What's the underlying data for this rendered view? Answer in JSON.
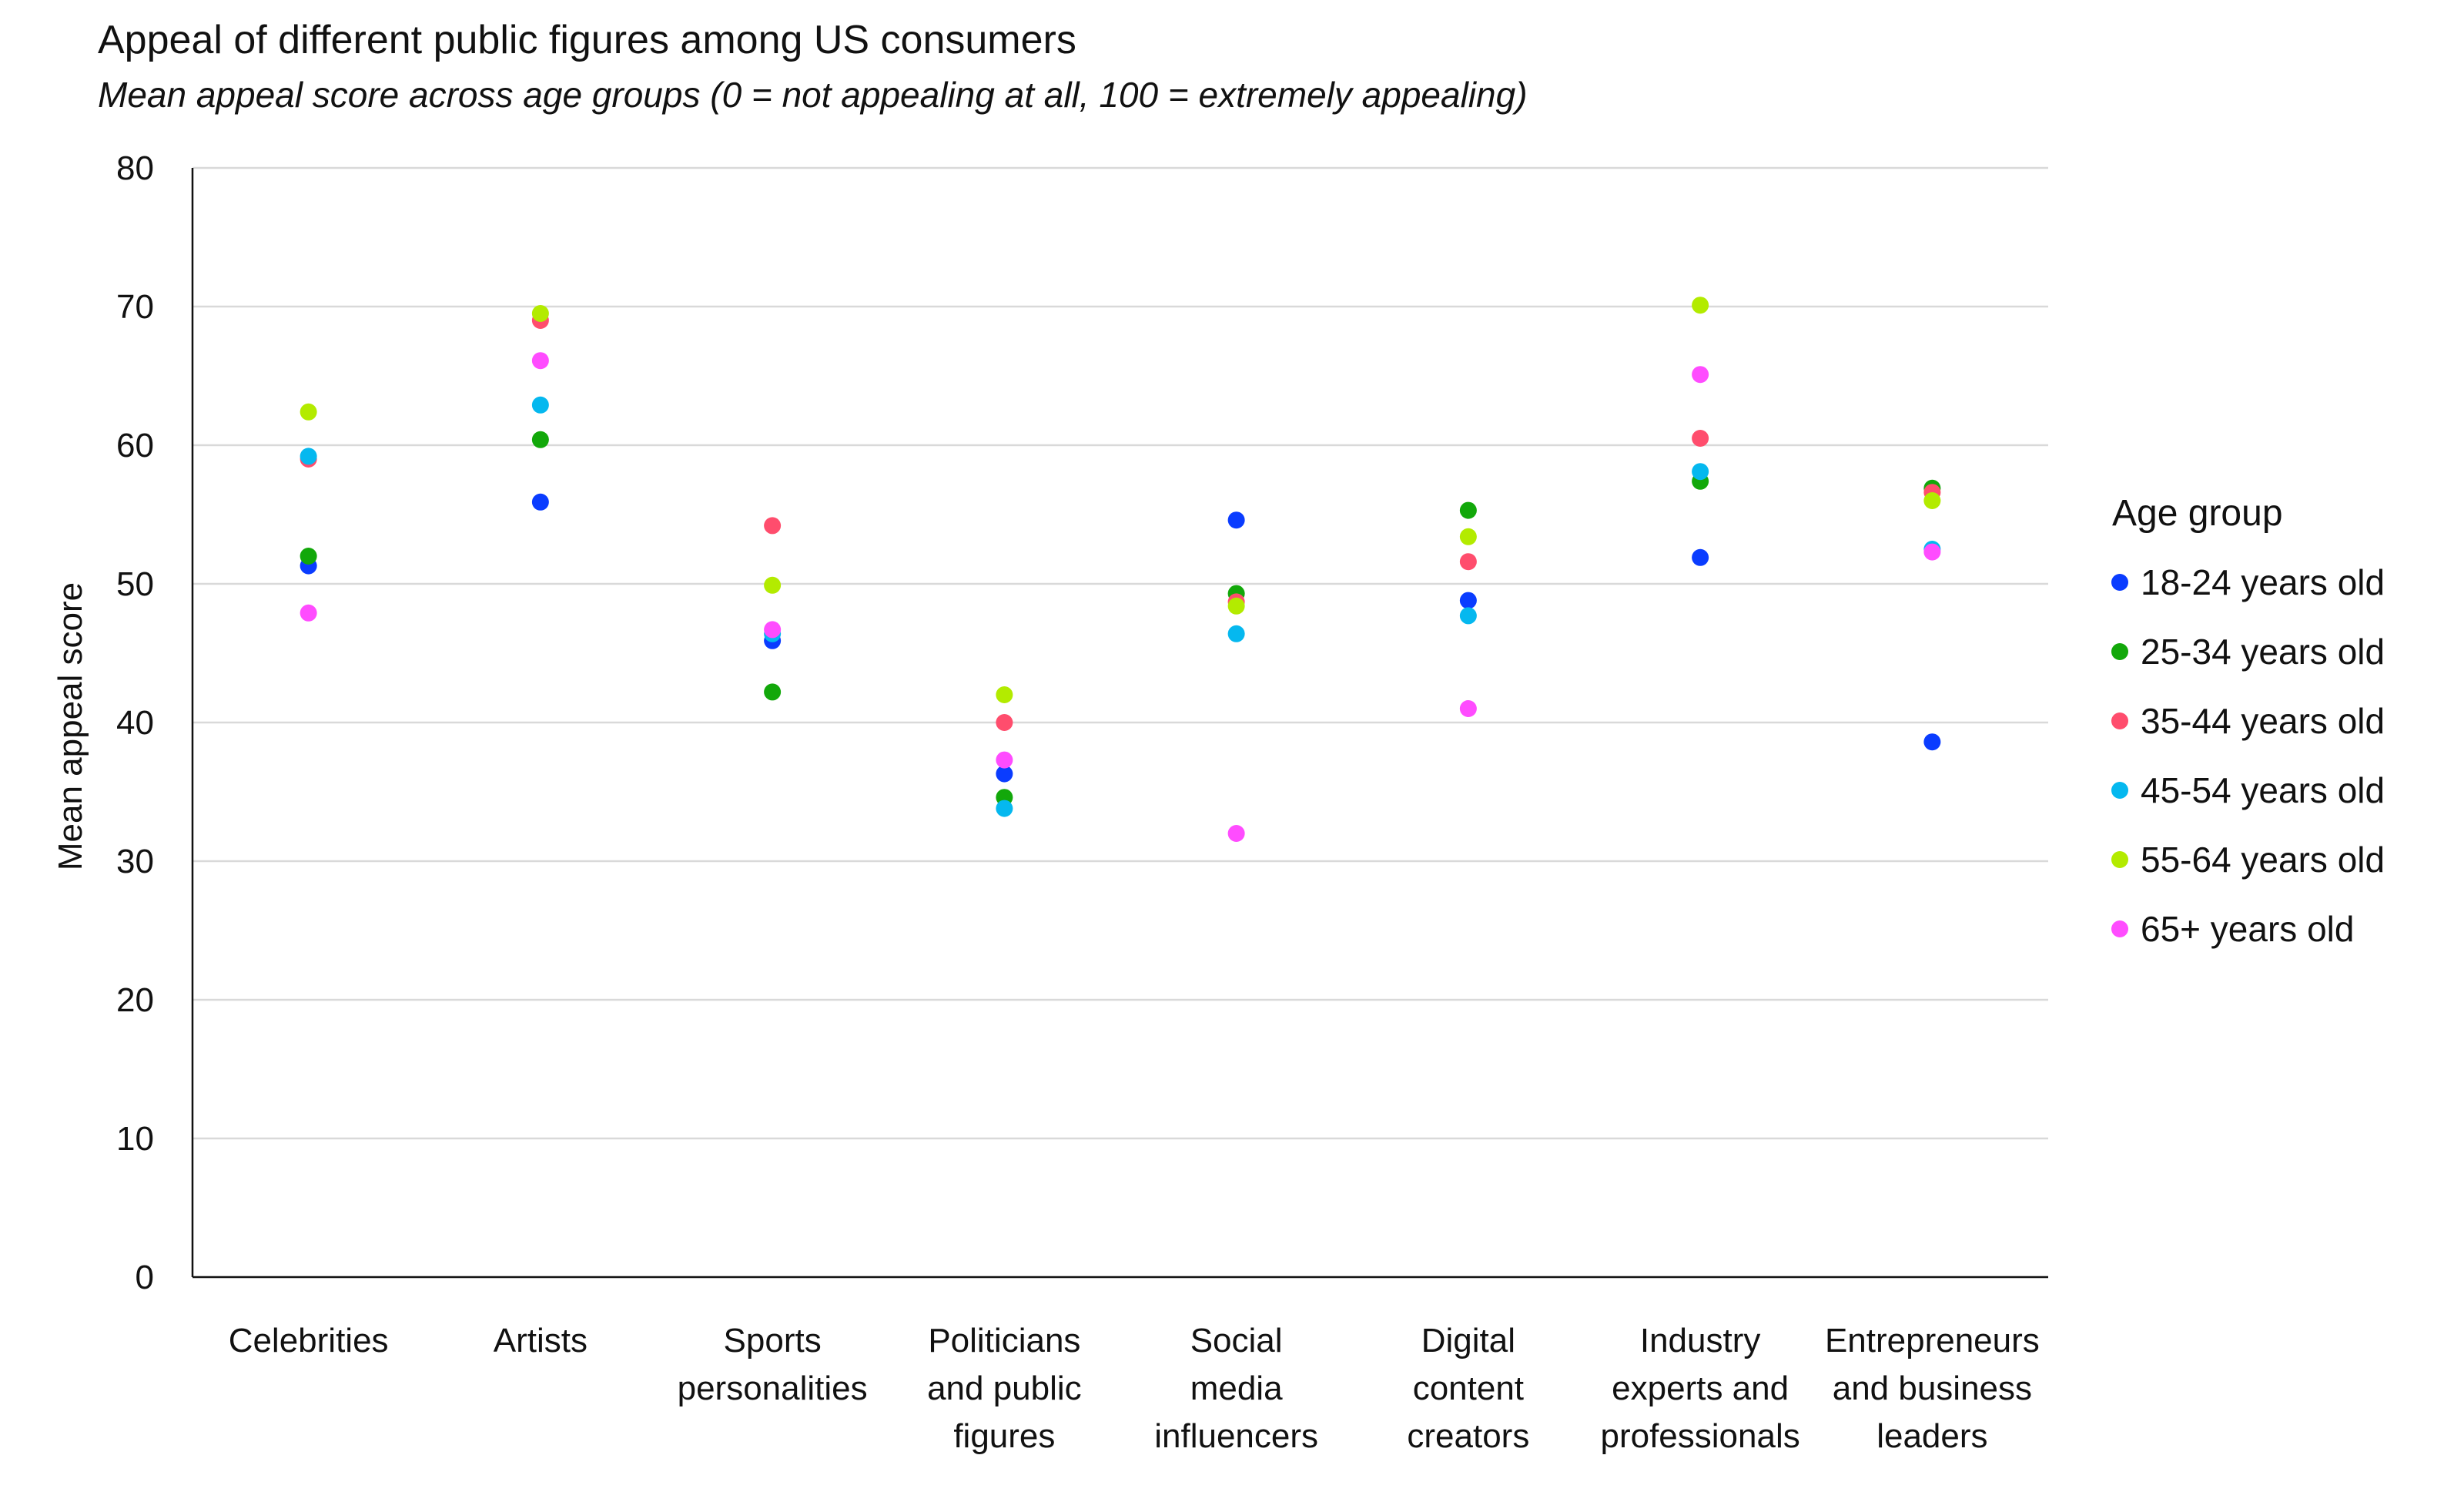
{
  "chart_data": {
    "type": "scatter",
    "title": "Appeal of different public figures among US consumers",
    "subtitle": "Mean appeal score across age groups (0 = not appealing at all, 100 = extremely appealing)",
    "xlabel": "",
    "ylabel": "Mean appeal score",
    "ylim": [
      0,
      80
    ],
    "yticks": [
      "0",
      "10",
      "20",
      "30",
      "40",
      "50",
      "60",
      "70",
      "80"
    ],
    "grid": "horizontal",
    "legend_position": "right",
    "legend_title": "Age group",
    "categories": [
      [
        "Celebrities"
      ],
      [
        "Artists"
      ],
      [
        "Sports",
        "personalities"
      ],
      [
        "Politicians",
        "and public",
        "figures"
      ],
      [
        "Social",
        "media",
        "influencers"
      ],
      [
        "Digital",
        "content",
        "creators"
      ],
      [
        "Industry",
        "experts and",
        "professionals"
      ],
      [
        "Entrepreneurs",
        "and business",
        "leaders"
      ]
    ],
    "series": [
      {
        "name": "18-24 years old",
        "color": "#0a3cff",
        "values": [
          51.3,
          55.9,
          45.9,
          36.3,
          54.6,
          48.8,
          51.9,
          38.6
        ]
      },
      {
        "name": "25-34 years old",
        "color": "#12a80a",
        "values": [
          52.0,
          60.4,
          42.2,
          34.6,
          49.3,
          55.3,
          57.4,
          56.9
        ]
      },
      {
        "name": "35-44 years old",
        "color": "#ff4d6d",
        "values": [
          59.0,
          69.0,
          54.2,
          40.0,
          48.7,
          51.6,
          60.5,
          56.6
        ]
      },
      {
        "name": "45-54 years old",
        "color": "#05b8ef",
        "values": [
          59.2,
          62.9,
          46.4,
          33.8,
          46.4,
          47.7,
          58.1,
          52.5
        ]
      },
      {
        "name": "55-64 years old",
        "color": "#b3eb00",
        "values": [
          62.4,
          69.5,
          49.9,
          42.0,
          48.4,
          53.4,
          70.1,
          56.0
        ]
      },
      {
        "name": "65+ years old",
        "color": "#ff4cff",
        "values": [
          47.9,
          66.1,
          46.7,
          37.3,
          32.0,
          41.0,
          65.1,
          52.3
        ]
      }
    ]
  }
}
